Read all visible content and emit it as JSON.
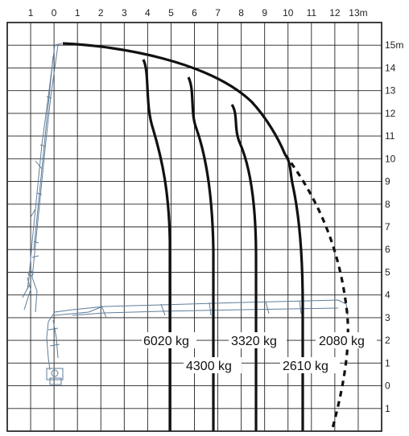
{
  "chart": {
    "x_ticks": [
      "1",
      "0",
      "1",
      "2",
      "3",
      "4",
      "5",
      "6",
      "7",
      "8",
      "9",
      "10",
      "11",
      "12",
      "13m"
    ],
    "y_ticks": [
      "15m",
      "14",
      "13",
      "12",
      "11",
      "10",
      "9",
      "8",
      "7",
      "6",
      "5",
      "4",
      "3",
      "2",
      "1",
      "0",
      "1"
    ],
    "load_labels": [
      {
        "text": "6020 kg",
        "reach_m": 5.0
      },
      {
        "text": "4300 kg",
        "reach_m": 6.8
      },
      {
        "text": "3320 kg",
        "reach_m": 8.7
      },
      {
        "text": "2610 kg",
        "reach_m": 10.7
      },
      {
        "text": "2080 kg",
        "reach_m": 12.2
      }
    ],
    "line_color": "#111111",
    "crane_color": "#5f7d99"
  }
}
